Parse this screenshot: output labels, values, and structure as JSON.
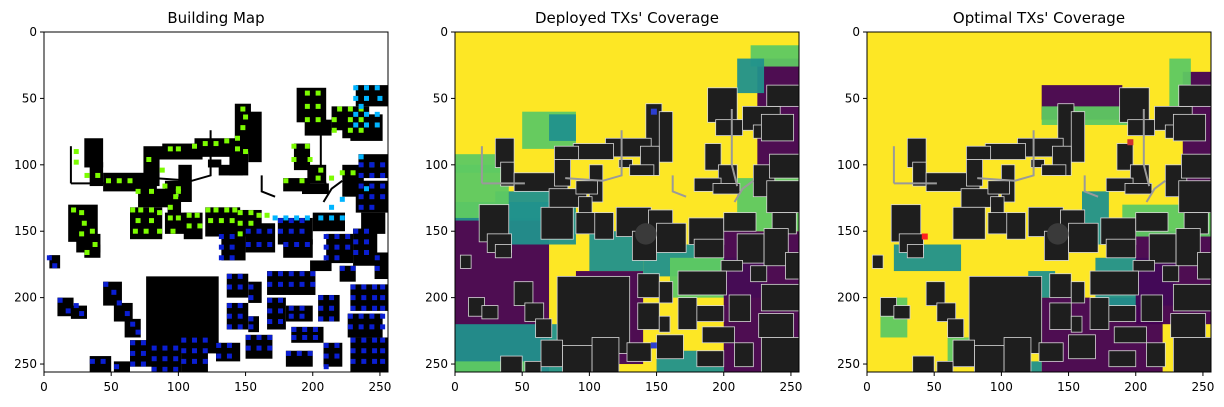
{
  "chart_data": [
    {
      "type": "heatmap",
      "title": "Building Map",
      "xlabel": "",
      "ylabel": "",
      "xlim": [
        0,
        256
      ],
      "ylim": [
        256,
        0
      ],
      "xticks": [
        0,
        50,
        100,
        150,
        200,
        250
      ],
      "yticks": [
        0,
        50,
        100,
        150,
        200,
        250
      ],
      "grid": false,
      "background": "#ffffff",
      "palette": {
        "building": "#000000",
        "green_sensor": "#7cfc00",
        "cyan_sensor": "#00b4ff",
        "blue_sensor": "#0a1ed2"
      }
    },
    {
      "type": "heatmap",
      "title": "Deployed TXs' Coverage",
      "xlabel": "",
      "ylabel": "",
      "xlim": [
        0,
        256
      ],
      "ylim": [
        256,
        0
      ],
      "xticks": [
        0,
        50,
        100,
        150,
        200,
        250
      ],
      "yticks": [
        0,
        50,
        100,
        150,
        200,
        250
      ],
      "grid": false,
      "background": "#fde725",
      "palette": {
        "high": "#fde725",
        "mid_high": "#5ec962",
        "mid_low": "#21918c",
        "low": "#440154",
        "building": "#1e1e1e"
      },
      "transmitters": [
        {
          "x": 148,
          "y": 60,
          "color": "#2c3fd1"
        },
        {
          "x": 148,
          "y": 236,
          "color": "#2c3fd1"
        }
      ]
    },
    {
      "type": "heatmap",
      "title": "Optimal TXs' Coverage",
      "xlabel": "",
      "ylabel": "",
      "xlim": [
        0,
        256
      ],
      "ylim": [
        256,
        0
      ],
      "xticks": [
        0,
        50,
        100,
        150,
        200,
        250
      ],
      "yticks": [
        0,
        50,
        100,
        150,
        200,
        250
      ],
      "grid": false,
      "background": "#fde725",
      "palette": {
        "high": "#fde725",
        "mid_high": "#5ec962",
        "mid_low": "#21918c",
        "low": "#440154",
        "building": "#1e1e1e"
      },
      "transmitters": [
        {
          "x": 43,
          "y": 154,
          "color": "#ff2020"
        },
        {
          "x": 196,
          "y": 83,
          "color": "#d03030"
        }
      ]
    }
  ]
}
